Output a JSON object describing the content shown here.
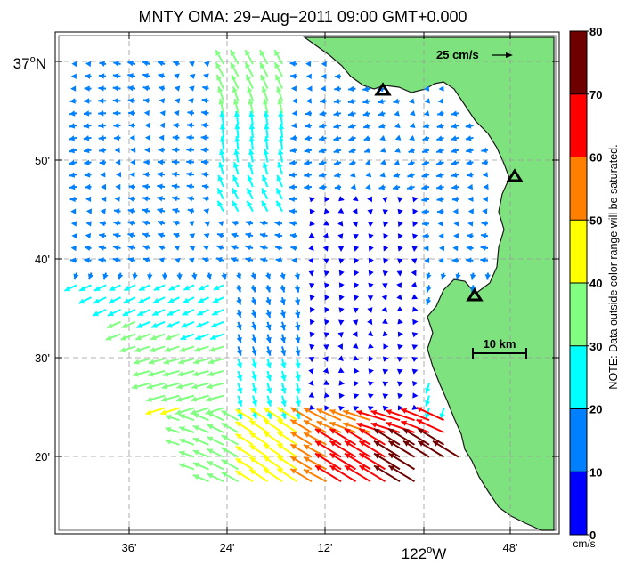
{
  "title": "MNTY OMA: 29−Aug−2011 09:00 GMT+0.000",
  "lat_labels": [
    {
      "main": "37",
      "deg": "o",
      "suffix": "N"
    },
    {
      "main": "50'"
    },
    {
      "main": "40'"
    },
    {
      "main": "30'"
    },
    {
      "main": "20'"
    }
  ],
  "lon_labels": [
    {
      "main": "36'"
    },
    {
      "main": "24'"
    },
    {
      "main": "12'"
    },
    {
      "main": "122",
      "deg": "o",
      "suffix": "W"
    },
    {
      "main": "48'"
    }
  ],
  "scale_arrow": {
    "label": "25 cm/s"
  },
  "scale_bar": {
    "label": "10 km"
  },
  "note": "NOTE: Data outside color range will be saturated.",
  "colorbar": {
    "unit": "cm/s",
    "ticks": [
      "80",
      "70",
      "60",
      "50",
      "40",
      "30",
      "20",
      "10",
      "0"
    ],
    "colors": [
      "#6e0000",
      "#ff0000",
      "#ff8000",
      "#ffff00",
      "#80ff80",
      "#00ffff",
      "#0080ff",
      "#0000ff"
    ]
  },
  "colors": {
    "land": "#7ee37e",
    "coast": "#1a1a1a",
    "grid": "#9a9a9a"
  },
  "stations": [
    "triangle-marker",
    "triangle-marker",
    "triangle-marker"
  ]
}
